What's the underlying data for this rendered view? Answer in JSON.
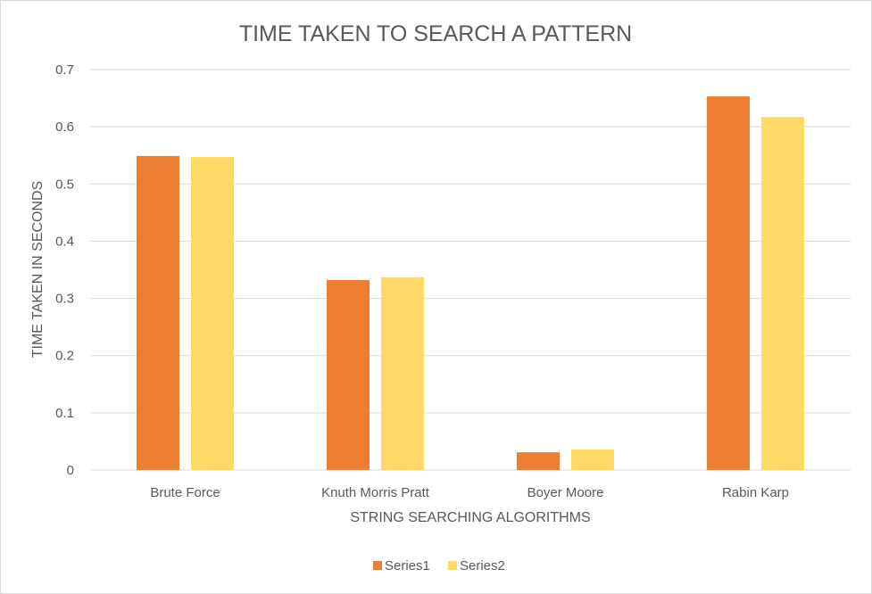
{
  "chart_data": {
    "type": "bar",
    "title": "TIME TAKEN TO SEARCH A PATTERN",
    "xlabel": "STRING SEARCHING ALGORITHMS",
    "ylabel": "TIME TAKEN IN SECONDS",
    "categories": [
      "Brute Force",
      "Knuth Morris Pratt",
      "Boyer Moore",
      "Rabin Karp"
    ],
    "series": [
      {
        "name": "Series1",
        "color": "#ED7D31",
        "values": [
          0.549,
          0.332,
          0.031,
          0.653
        ]
      },
      {
        "name": "Series2",
        "color": "#FFD966",
        "values": [
          0.547,
          0.337,
          0.036,
          0.617
        ]
      }
    ],
    "ylim": [
      0,
      0.7
    ],
    "yticks": [
      "0",
      "0.1",
      "0.2",
      "0.3",
      "0.4",
      "0.5",
      "0.6",
      "0.7"
    ],
    "grid": true,
    "legend_position": "bottom"
  }
}
